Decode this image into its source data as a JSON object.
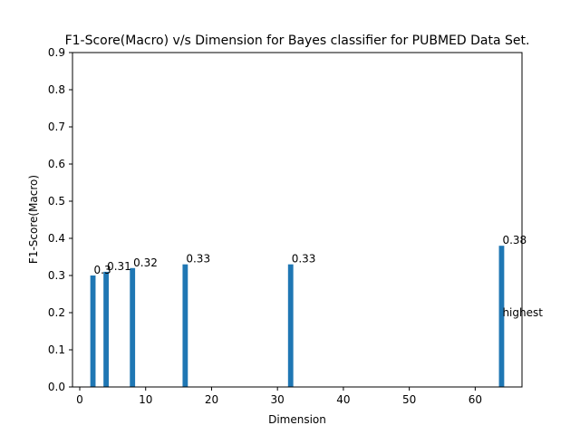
{
  "chart_data": {
    "type": "bar",
    "title": "F1-Score(Macro) v/s Dimension for Bayes classifier for PUBMED Data Set.",
    "xlabel": "Dimension",
    "ylabel": "F1-Score(Macro)",
    "x": [
      2,
      4,
      8,
      16,
      32,
      64
    ],
    "values": [
      0.3,
      0.31,
      0.32,
      0.33,
      0.33,
      0.38
    ],
    "data_labels": [
      "0.3",
      "0.31",
      "0.32",
      "0.33",
      "0.33",
      "0.38"
    ],
    "xlim": [
      -1.1,
      67.1
    ],
    "ylim": [
      0,
      0.9
    ],
    "xticks": [
      0,
      10,
      20,
      30,
      40,
      50,
      60
    ],
    "xtick_labels": [
      "0",
      "10",
      "20",
      "30",
      "40",
      "50",
      "60"
    ],
    "yticks": [
      0,
      0.1,
      0.2,
      0.3,
      0.4,
      0.5,
      0.6,
      0.7,
      0.8,
      0.9
    ],
    "ytick_labels": [
      "0.0",
      "0.1",
      "0.2",
      "0.3",
      "0.4",
      "0.5",
      "0.6",
      "0.7",
      "0.8",
      "0.9"
    ],
    "annotation": {
      "text": "highest",
      "x": 64,
      "y": 0.19
    },
    "bar_color": "#1f77b4",
    "grid": false,
    "legend": "none"
  }
}
